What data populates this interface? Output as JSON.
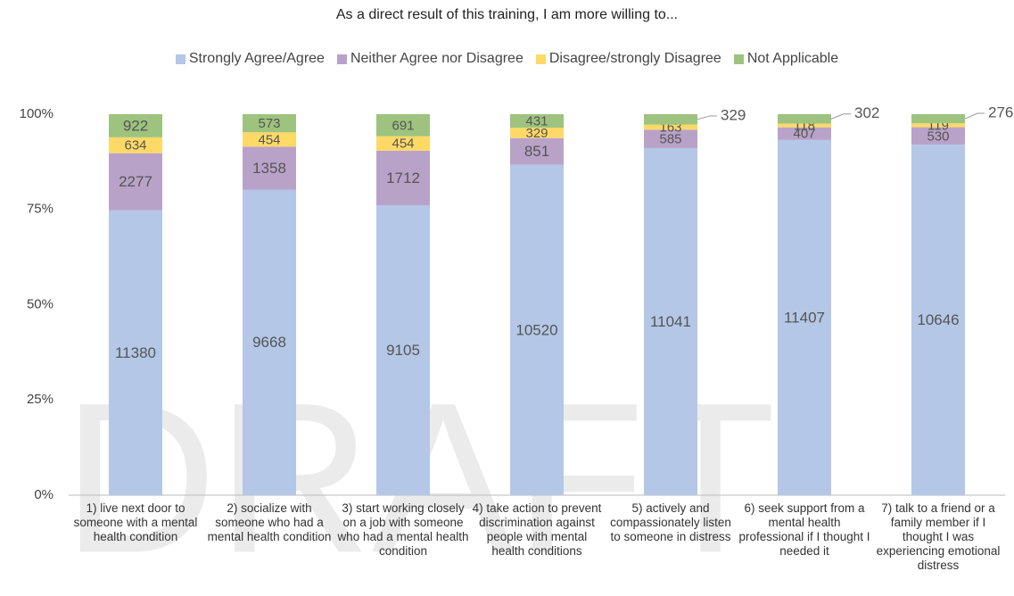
{
  "chart_data": {
    "type": "bar",
    "stacked": "percent",
    "title": "As a direct result of this training, I am more willing to...",
    "watermark": "DRAFT",
    "categories": [
      "1) live next door to someone with a mental health condition",
      "2) socialize with someone who had a mental health condition",
      "3) start working closely on a job with someone who had a mental health condition",
      "4) take action to prevent discrimination against people with mental health conditions",
      "5) actively and compassionately listen to someone in distress",
      "6) seek support from a mental health professional if I thought I needed it",
      "7) talk to a friend or a family member if I thought I was experiencing emotional distress"
    ],
    "series": [
      {
        "name": "Strongly Agree/Agree",
        "color": "#b4c7e7",
        "values": [
          11380,
          9668,
          9105,
          10520,
          11041,
          11407,
          10646
        ]
      },
      {
        "name": "Neither Agree nor Disagree",
        "color": "#b9a2c8",
        "values": [
          2277,
          1358,
          1712,
          851,
          585,
          407,
          530
        ]
      },
      {
        "name": "Disagree/strongly Disagree",
        "color": "#ffd966",
        "values": [
          634,
          454,
          454,
          329,
          163,
          118,
          119
        ]
      },
      {
        "name": "Not Applicable",
        "color": "#9dc37e",
        "values": [
          922,
          573,
          691,
          431,
          329,
          302,
          276
        ]
      }
    ],
    "ylim": [
      0,
      100
    ],
    "yticks": [
      {
        "value": 0,
        "label": "0%"
      },
      {
        "value": 25,
        "label": "25%"
      },
      {
        "value": 50,
        "label": "50%"
      },
      {
        "value": 75,
        "label": "75%"
      },
      {
        "value": 100,
        "label": "100%"
      }
    ],
    "grid": false,
    "legend": "top"
  }
}
